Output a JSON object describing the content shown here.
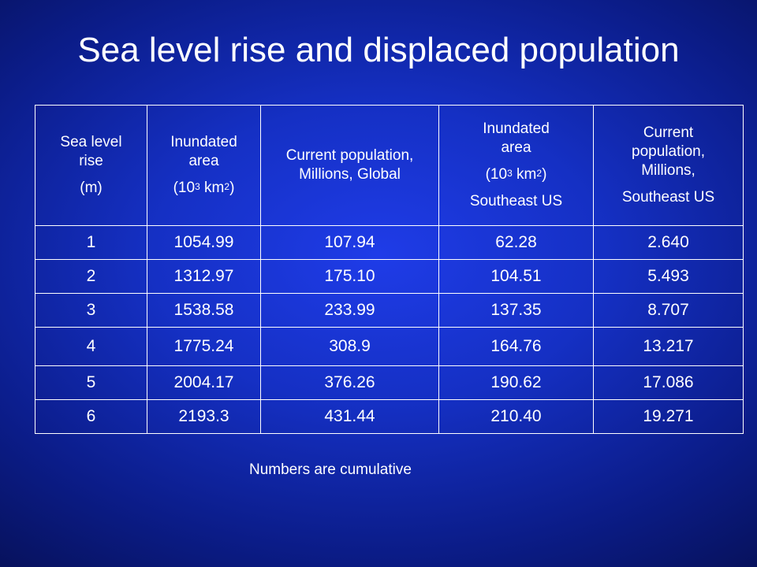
{
  "slide": {
    "title": "Sea level rise and displaced population",
    "footnote": "Numbers are cumulative"
  },
  "table": {
    "headers": [
      {
        "line1": "Sea level rise",
        "line2": "(m)"
      },
      {
        "line1": "Inundated area",
        "unit_pre": "(10",
        "unit_sup1": "3",
        "unit_mid": " km",
        "unit_sup2": "2",
        "unit_post": ")"
      },
      {
        "line1": "Current population, Millions, Global"
      },
      {
        "line1": "Inundated area",
        "unit_pre": "(10",
        "unit_sup1": "3",
        "unit_mid": " km",
        "unit_sup2": "2",
        "unit_post": ")",
        "line3": "Southeast US"
      },
      {
        "line1": "Current population, Millions,",
        "line3": "Southeast US"
      }
    ],
    "rows": [
      [
        "1",
        "1054.99",
        "107.94",
        "62.28",
        "2.640"
      ],
      [
        "2",
        "1312.97",
        "175.10",
        "104.51",
        "5.493"
      ],
      [
        "3",
        "1538.58",
        "233.99",
        "137.35",
        "8.707"
      ],
      [
        "4",
        "1775.24",
        "308.9",
        "164.76",
        "13.217"
      ],
      [
        "5",
        "2004.17",
        "376.26",
        "190.62",
        "17.086"
      ],
      [
        "6",
        "2193.3",
        "431.44",
        "210.40",
        "19.271"
      ]
    ]
  }
}
